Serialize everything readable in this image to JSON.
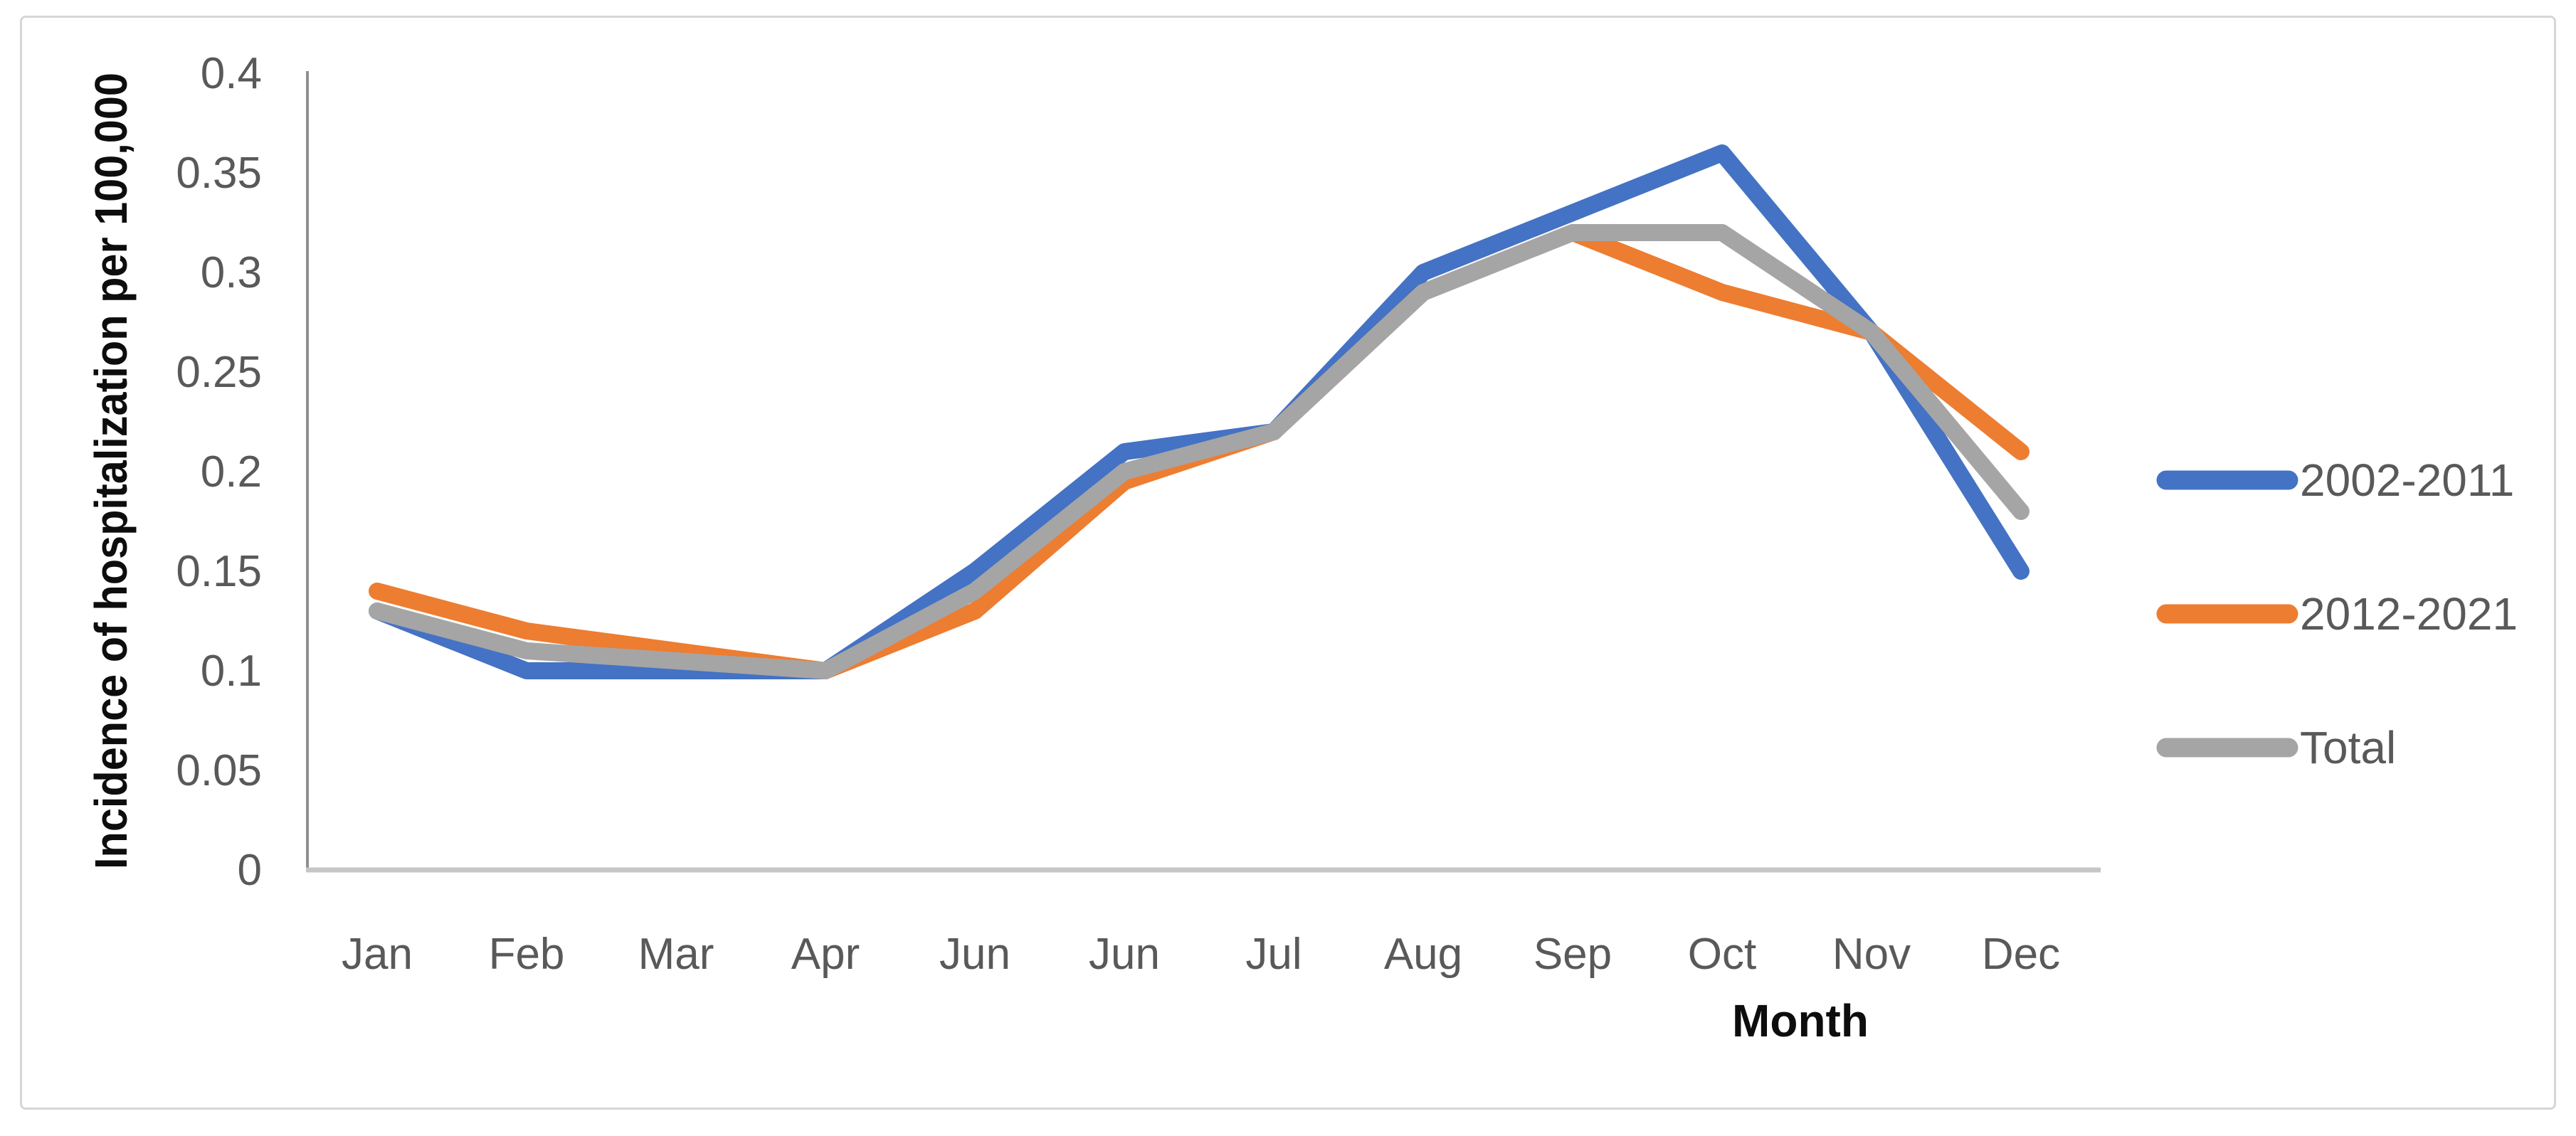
{
  "chart_data": {
    "type": "line",
    "title": "",
    "categories": [
      "Jan",
      "Feb",
      "Mar",
      "Apr",
      "Jun",
      "Jun",
      "Jul",
      "Aug",
      "Sep",
      "Oct",
      "Nov",
      "Dec"
    ],
    "series": [
      {
        "name": "2002-2011",
        "color": "#4472C4",
        "values": [
          0.13,
          0.1,
          0.1,
          0.1,
          0.15,
          0.21,
          0.22,
          0.3,
          0.33,
          0.36,
          0.27,
          0.15
        ]
      },
      {
        "name": "2012-2021",
        "color": "#ED7D31",
        "values": [
          0.14,
          0.12,
          0.11,
          0.1,
          0.13,
          0.195,
          0.22,
          0.29,
          0.32,
          0.29,
          0.27,
          0.21
        ]
      },
      {
        "name": "Total",
        "color": "#A5A5A5",
        "values": [
          0.13,
          0.11,
          0.105,
          0.1,
          0.14,
          0.2,
          0.22,
          0.29,
          0.32,
          0.32,
          0.27,
          0.18
        ]
      }
    ],
    "xlabel": "Month",
    "ylabel": "Incidence of hospitalization per 100,000",
    "ylim": [
      0,
      0.4
    ],
    "ytick_step": 0.05,
    "ytick_labels": [
      "0",
      "0.05",
      "0.1",
      "0.15",
      "0.2",
      "0.25",
      "0.3",
      "0.35",
      "0.4"
    ],
    "grid": false,
    "legend_position": "right",
    "line_thickness_px": 24
  },
  "colors": {
    "background": "#ffffff",
    "frame_border": "#d6d6d6",
    "tick_label": "#595959",
    "legend_label": "#595959",
    "axis_title": "#0d0d0d",
    "y_axis_line": "#8f8f8f",
    "x_axis_line": "#c6c6c6"
  }
}
